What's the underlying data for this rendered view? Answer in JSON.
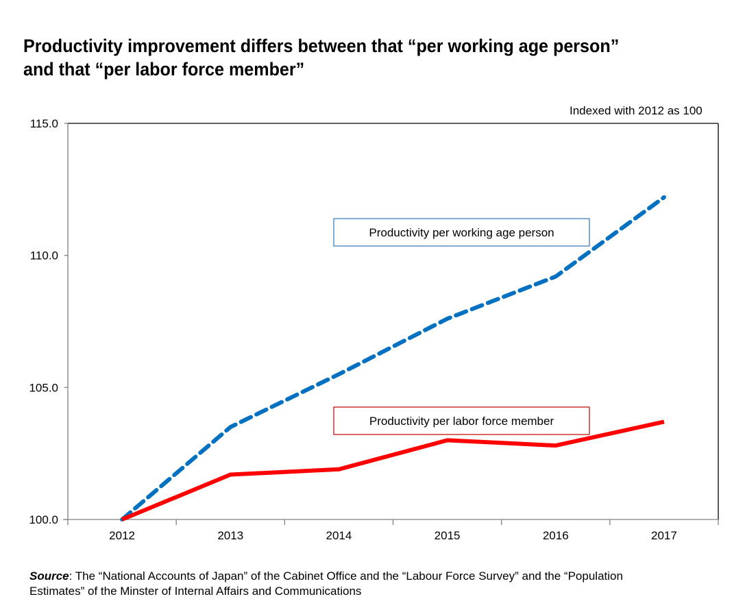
{
  "title": {
    "line1": "Productivity improvement differs between that “per working age person”",
    "line2": "and that “per labor force member”"
  },
  "note": "Indexed with 2012 as 100",
  "source": {
    "label": "Source",
    "line1": ": The “National Accounts of Japan” of the Cabinet Office and the “Labour Force Survey” and the “Population",
    "line2": "Estimates” of the Minster of Internal Affairs and Communications"
  },
  "colors": {
    "working_age": "#0070C0",
    "labor_force": "#FF0000",
    "working_age_box_border": "#2E75B6",
    "labor_force_box_border": "#C00000",
    "axis": "#808080",
    "frame": "#000000"
  },
  "chart_data": {
    "type": "line",
    "title": "Productivity improvement differs between that “per working age person” and that “per labor force member”",
    "xlabel": "",
    "ylabel": "",
    "note": "Indexed with 2012 as 100",
    "categories": [
      "2012",
      "2013",
      "2014",
      "2015",
      "2016",
      "2017"
    ],
    "ylim": [
      100.0,
      115.0
    ],
    "yticks": [
      "100.0",
      "105.0",
      "110.0",
      "115.0"
    ],
    "ytick_values": [
      100,
      105,
      110,
      115
    ],
    "grid": false,
    "legend_placement": "inline labels",
    "series": [
      {
        "name": "Productivity per working age person",
        "style": "dashed",
        "color": "#0070C0",
        "values": [
          100.0,
          103.5,
          105.5,
          107.6,
          109.2,
          112.2
        ]
      },
      {
        "name": "Productivity per labor force member",
        "style": "solid",
        "color": "#FF0000",
        "values": [
          100.0,
          101.7,
          101.9,
          103.0,
          102.8,
          103.7
        ]
      }
    ]
  }
}
